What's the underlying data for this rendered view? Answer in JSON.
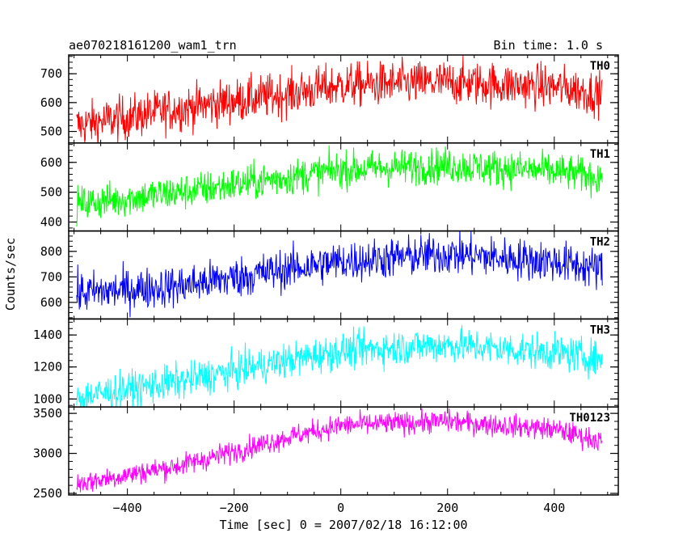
{
  "header": {
    "title": "ae070218161200_wam1_trn",
    "bin_time": "Bin time: 1.0 s"
  },
  "axes": {
    "xlabel": "Time [sec] 0 = 2007/02/18 16:12:00",
    "ylabel": "Counts/sec"
  },
  "chart_data": {
    "type": "line",
    "title": "ae070218161200_wam1_trn",
    "subtitle": "Bin time: 1.0 s",
    "xlabel": "Time [sec] 0 = 2007/02/18 16:12:00",
    "ylabel": "Counts/sec",
    "xlim": [
      -510,
      520
    ],
    "x_range": [
      -495,
      490
    ],
    "x_step": 1,
    "x_ticks": [
      -400,
      -200,
      0,
      200,
      400
    ],
    "x_tick_labels": [
      "−400",
      "−200",
      "0",
      "200",
      "400"
    ],
    "grid": false,
    "series": [
      {
        "name": "TH0",
        "color": "#ff0000",
        "ylim": [
          460,
          765
        ],
        "y_ticks": [
          500,
          600,
          700
        ],
        "y_tick_labels": [
          "500",
          "600",
          "700"
        ],
        "noise": 38,
        "trend": [
          [
            -495,
            520
          ],
          [
            -300,
            580
          ],
          [
            -100,
            630
          ],
          [
            0,
            660
          ],
          [
            200,
            670
          ],
          [
            400,
            655
          ],
          [
            490,
            630
          ]
        ]
      },
      {
        "name": "TH1",
        "color": "#00ff00",
        "ylim": [
          370,
          665
        ],
        "y_ticks": [
          400,
          500,
          600
        ],
        "y_tick_labels": [
          "400",
          "500",
          "600"
        ],
        "noise": 30,
        "trend": [
          [
            -495,
            460
          ],
          [
            -300,
            500
          ],
          [
            -100,
            550
          ],
          [
            0,
            575
          ],
          [
            200,
            590
          ],
          [
            400,
            570
          ],
          [
            490,
            550
          ]
        ]
      },
      {
        "name": "TH2",
        "color": "#0000ff",
        "ylim": [
          535,
          880
        ],
        "y_ticks": [
          600,
          700,
          800
        ],
        "y_tick_labels": [
          "600",
          "700",
          "800"
        ],
        "noise": 40,
        "trend": [
          [
            -495,
            635
          ],
          [
            -300,
            665
          ],
          [
            -100,
            730
          ],
          [
            0,
            760
          ],
          [
            200,
            790
          ],
          [
            400,
            760
          ],
          [
            490,
            730
          ]
        ]
      },
      {
        "name": "TH3",
        "color": "#00ffff",
        "ylim": [
          950,
          1500
        ],
        "y_ticks": [
          1000,
          1200,
          1400
        ],
        "y_tick_labels": [
          "1000",
          "1200",
          "1400"
        ],
        "noise": 55,
        "trend": [
          [
            -495,
            1010
          ],
          [
            -300,
            1110
          ],
          [
            -100,
            1240
          ],
          [
            0,
            1300
          ],
          [
            200,
            1340
          ],
          [
            400,
            1290
          ],
          [
            490,
            1250
          ]
        ]
      },
      {
        "name": "TH0123",
        "color": "#ff00ff",
        "ylim": [
          2480,
          3580
        ],
        "y_ticks": [
          2500,
          3000,
          3500
        ],
        "y_tick_labels": [
          "2500",
          "3000",
          "3500"
        ],
        "noise": 70,
        "trend": [
          [
            -495,
            2620
          ],
          [
            -300,
            2850
          ],
          [
            -100,
            3200
          ],
          [
            0,
            3350
          ],
          [
            200,
            3400
          ],
          [
            400,
            3300
          ],
          [
            490,
            3150
          ]
        ]
      }
    ]
  }
}
